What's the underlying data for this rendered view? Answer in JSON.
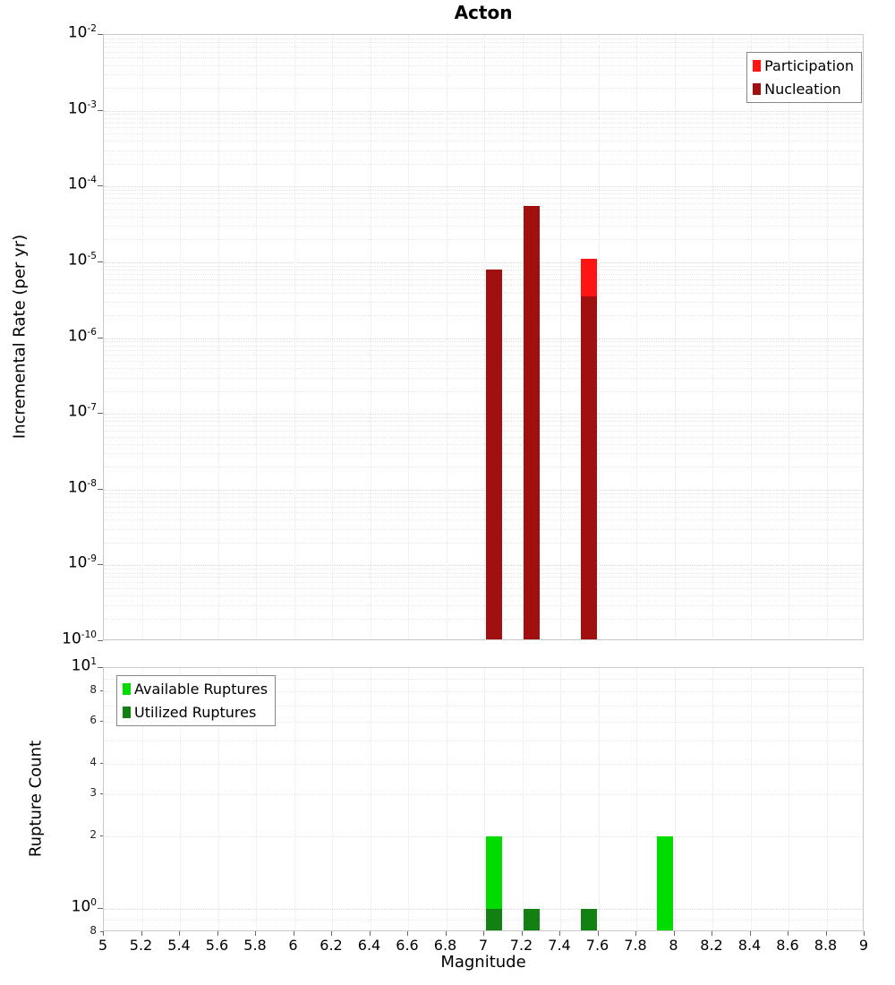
{
  "title": "Acton",
  "axes": {
    "x_label": "Magnitude",
    "top_y_label": "Incremental Rate (per yr)",
    "bottom_y_label": "Rupture Count"
  },
  "x_axis": {
    "ticks": [
      {
        "v": 5,
        "label": "5"
      },
      {
        "v": 5.2,
        "label": "5.2"
      },
      {
        "v": 5.4,
        "label": "5.4"
      },
      {
        "v": 5.6,
        "label": "5.6"
      },
      {
        "v": 5.8,
        "label": "5.8"
      },
      {
        "v": 6,
        "label": "6"
      },
      {
        "v": 6.2,
        "label": "6.2"
      },
      {
        "v": 6.4,
        "label": "6.4"
      },
      {
        "v": 6.6,
        "label": "6.6"
      },
      {
        "v": 6.8,
        "label": "6.8"
      },
      {
        "v": 7,
        "label": "7"
      },
      {
        "v": 7.2,
        "label": "7.2"
      },
      {
        "v": 7.4,
        "label": "7.4"
      },
      {
        "v": 7.6,
        "label": "7.6"
      },
      {
        "v": 7.8,
        "label": "7.8"
      },
      {
        "v": 8,
        "label": "8"
      },
      {
        "v": 8.2,
        "label": "8.2"
      },
      {
        "v": 8.4,
        "label": "8.4"
      },
      {
        "v": 8.6,
        "label": "8.6"
      },
      {
        "v": 8.8,
        "label": "8.8"
      },
      {
        "v": 9,
        "label": "9"
      }
    ]
  },
  "top_y_axis": {
    "major_exponents": [
      -2,
      -3,
      -4,
      -5,
      -6,
      -7,
      -8,
      -9,
      -10
    ]
  },
  "bottom_y_axis": {
    "ticks": [
      {
        "v": 10,
        "type": "major",
        "exp": 1
      },
      {
        "v": 8,
        "type": "minor",
        "label": "8"
      },
      {
        "v": 6,
        "type": "minor",
        "label": "6"
      },
      {
        "v": 4,
        "type": "minor",
        "label": "4"
      },
      {
        "v": 3,
        "type": "minor",
        "label": "3"
      },
      {
        "v": 2,
        "type": "minor",
        "label": "2"
      },
      {
        "v": 1,
        "type": "major",
        "exp": 0
      },
      {
        "v": 0.8,
        "type": "minor",
        "label": "8"
      }
    ]
  },
  "chart_data": [
    {
      "type": "bar",
      "panel": "top",
      "title": "Acton",
      "xlabel": "Magnitude",
      "ylabel": "Incremental Rate (per yr)",
      "yscale": "log",
      "ylim": [
        1e-10,
        0.01
      ],
      "xlim": [
        5,
        9
      ],
      "grid": true,
      "legend_position": "top-right",
      "bin_width_mag": 0.1,
      "series": [
        {
          "name": "Participation",
          "color": "#ff1414",
          "points": [
            [
              7.05,
              8e-06
            ],
            [
              7.25,
              5.5e-05
            ],
            [
              7.55,
              1.1e-05
            ]
          ]
        },
        {
          "name": "Nucleation",
          "color": "#a01010",
          "points": [
            [
              7.05,
              8e-06
            ],
            [
              7.25,
              5.5e-05
            ],
            [
              7.55,
              3.5e-06
            ]
          ]
        }
      ]
    },
    {
      "type": "bar",
      "panel": "bottom",
      "xlabel": "Magnitude",
      "ylabel": "Rupture Count",
      "yscale": "log",
      "ylim": [
        0.8,
        10
      ],
      "xlim": [
        5,
        9
      ],
      "grid": true,
      "legend_position": "top-left",
      "bin_width_mag": 0.1,
      "series": [
        {
          "name": "Available Ruptures",
          "color": "#00dc00",
          "points": [
            [
              7.05,
              2
            ],
            [
              7.25,
              1
            ],
            [
              7.55,
              1
            ],
            [
              7.95,
              2
            ]
          ]
        },
        {
          "name": "Utilized Ruptures",
          "color": "#128012",
          "points": [
            [
              7.05,
              1
            ],
            [
              7.25,
              1
            ],
            [
              7.55,
              1
            ]
          ]
        }
      ]
    }
  ]
}
